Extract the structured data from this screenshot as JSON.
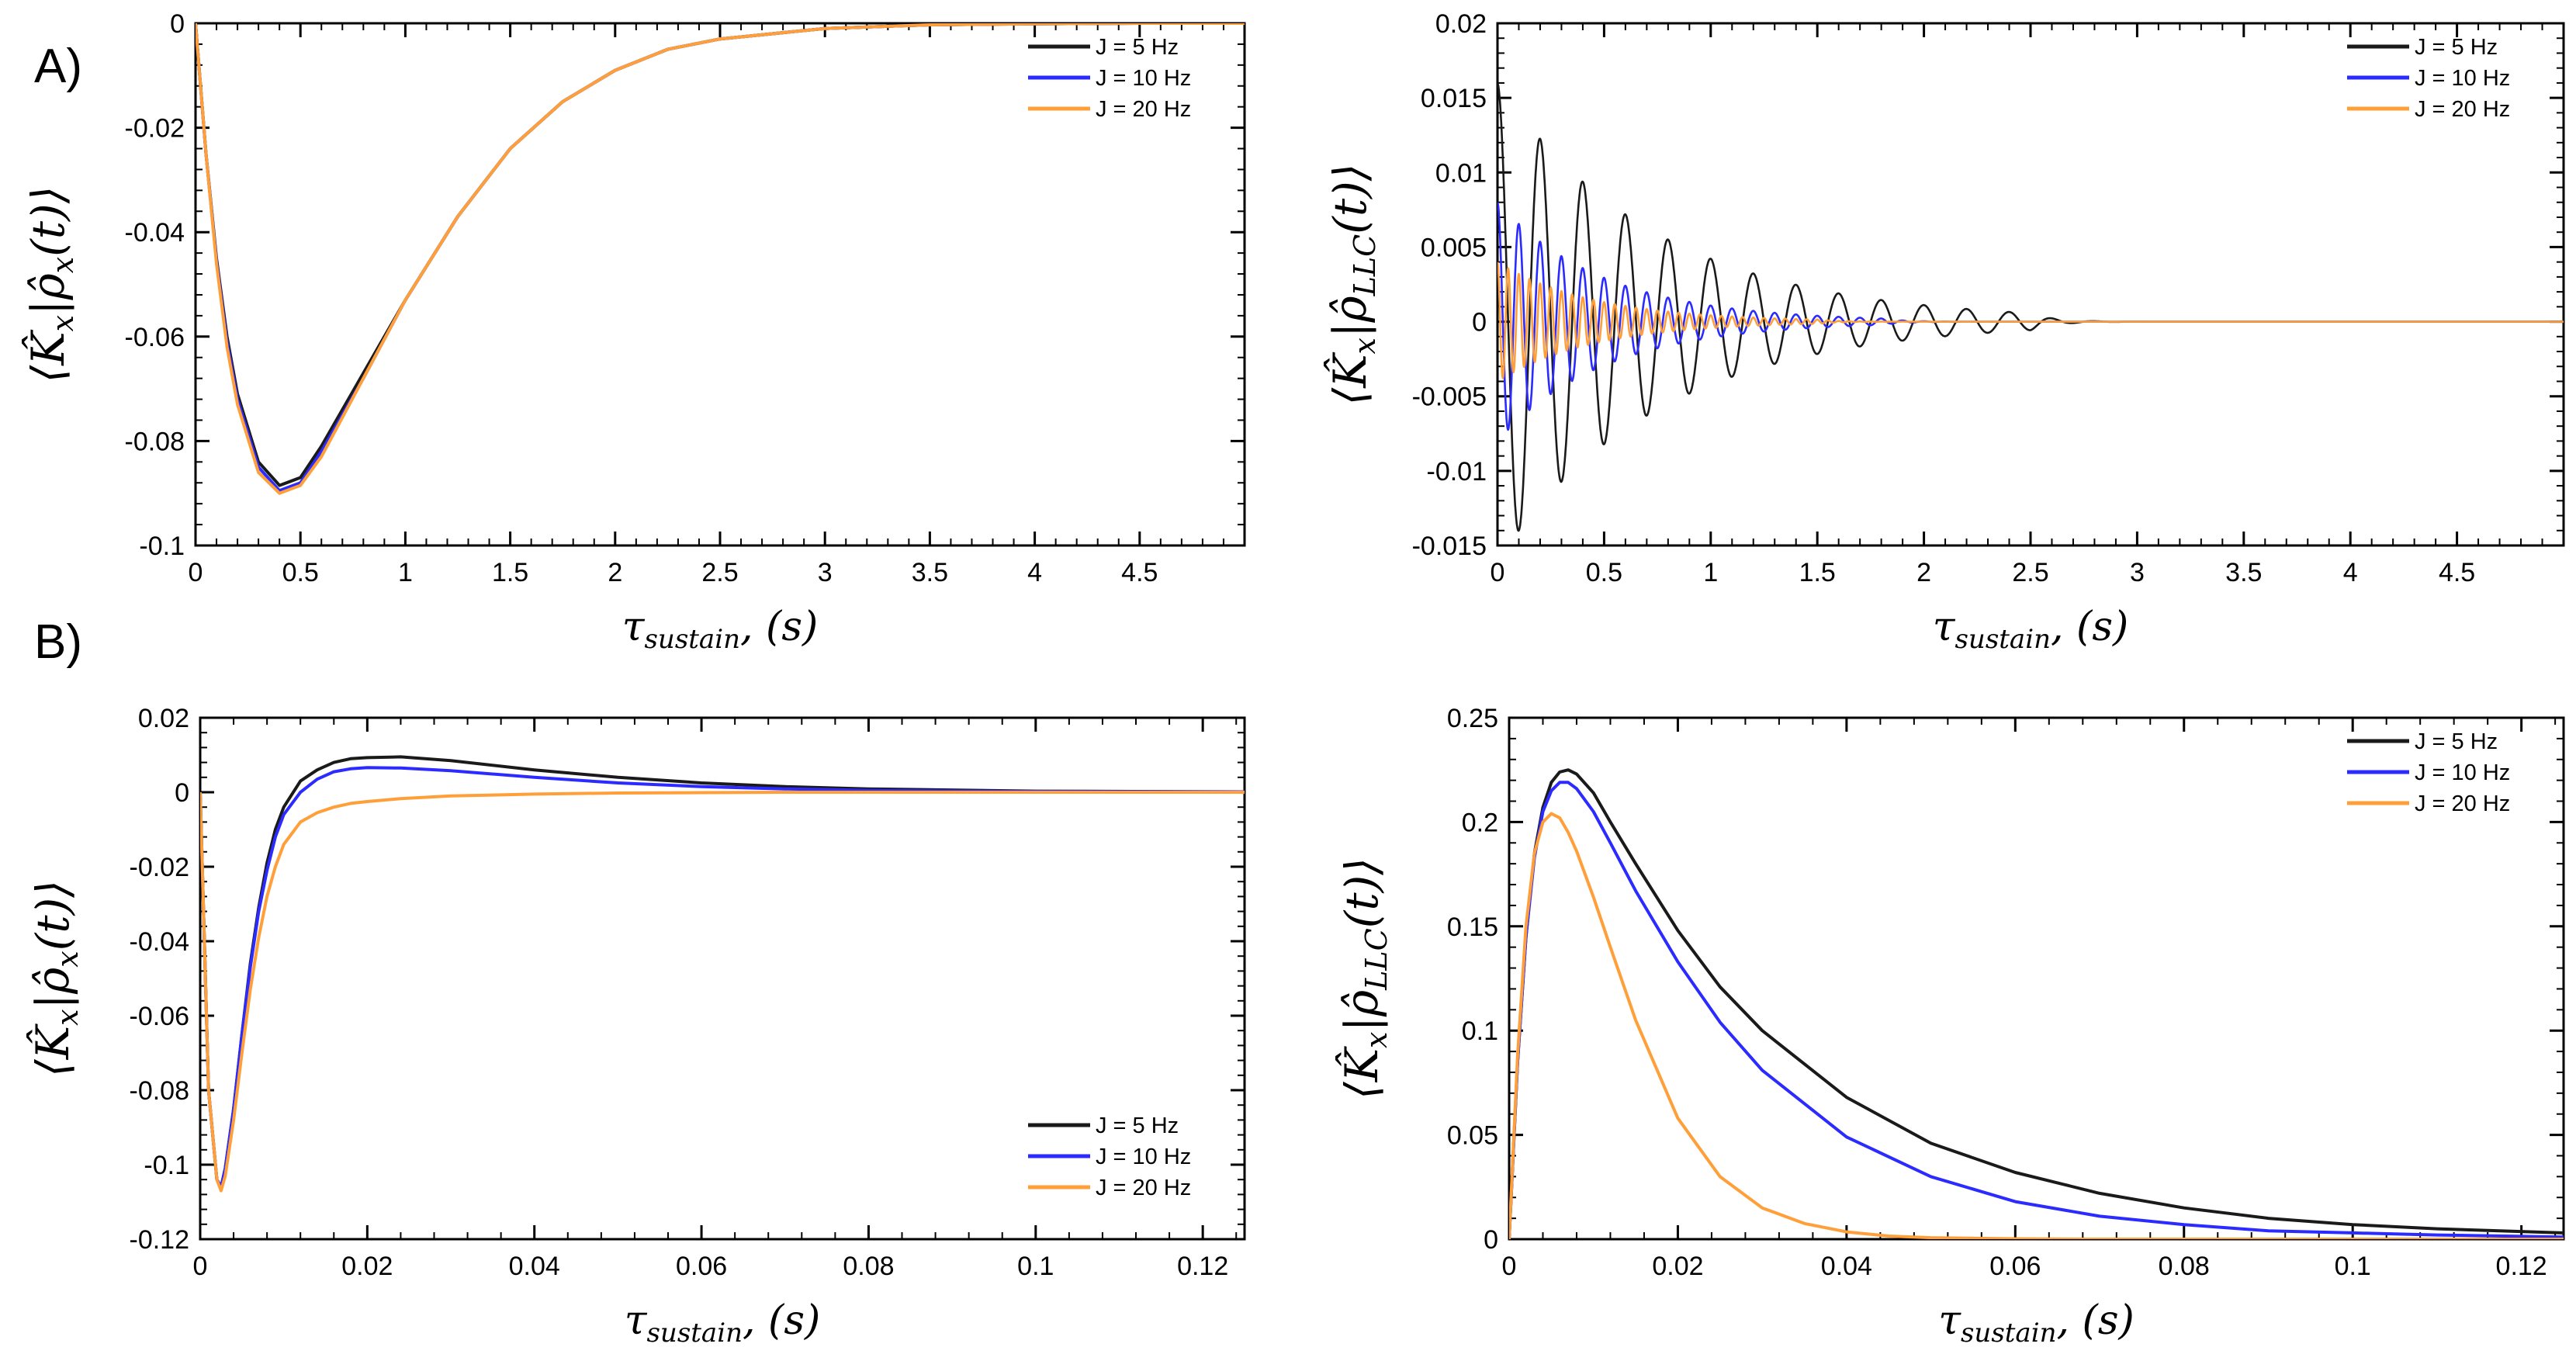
{
  "panel_labels": [
    "A)",
    "B)"
  ],
  "colors": {
    "J5": "#1a1a1a",
    "J10": "#2b2bff",
    "J20": "#ff9f3a",
    "axis": "#000000"
  },
  "chart_data": [
    {
      "type": "line",
      "panel": "A-left",
      "xlabel": {
        "main": "τ",
        "sub": "sustain",
        "tail": ", (s)"
      },
      "ylabel": {
        "open": "⟨K̂",
        "sub1": "x",
        "mid": "|ρ̂",
        "sub2": "x",
        "close": "(t)⟩"
      },
      "xlim": [
        0,
        5
      ],
      "ylim": [
        -0.1,
        0
      ],
      "xticks": [
        0,
        0.5,
        1,
        1.5,
        2,
        2.5,
        3,
        3.5,
        4,
        4.5
      ],
      "xtick_labels": [
        "0",
        "0.5",
        "1",
        "1.5",
        "2",
        "2.5",
        "3",
        "3.5",
        "4",
        "4.5"
      ],
      "yticks": [
        0,
        -0.02,
        -0.04,
        -0.06,
        -0.08,
        -0.1
      ],
      "ytick_labels": [
        "0",
        "-0.02",
        "-0.04",
        "-0.06",
        "-0.08",
        "-0.1"
      ],
      "legend": {
        "position": "top-right",
        "entries": [
          "J = 5 Hz",
          "J = 10 Hz",
          "J = 20 Hz"
        ]
      },
      "series": [
        {
          "name": "J = 5 Hz",
          "x": [
            0,
            0.05,
            0.1,
            0.15,
            0.2,
            0.3,
            0.4,
            0.5,
            0.6,
            0.8,
            1.0,
            1.25,
            1.5,
            1.75,
            2.0,
            2.25,
            2.5,
            3.0,
            3.5,
            4.0,
            4.5,
            5.0
          ],
          "y": [
            0,
            -0.025,
            -0.045,
            -0.06,
            -0.071,
            -0.084,
            -0.0885,
            -0.087,
            -0.081,
            -0.067,
            -0.053,
            -0.037,
            -0.024,
            -0.015,
            -0.009,
            -0.005,
            -0.003,
            -0.001,
            -0.0003,
            -0.0001,
            0,
            0
          ]
        },
        {
          "name": "J = 10 Hz",
          "x": [
            0,
            0.05,
            0.1,
            0.15,
            0.2,
            0.3,
            0.4,
            0.5,
            0.6,
            0.8,
            1.0,
            1.25,
            1.5,
            1.75,
            2.0,
            2.25,
            2.5,
            3.0,
            3.5,
            4.0,
            4.5,
            5.0
          ],
          "y": [
            0,
            -0.025,
            -0.0455,
            -0.061,
            -0.072,
            -0.085,
            -0.0895,
            -0.088,
            -0.082,
            -0.068,
            -0.053,
            -0.037,
            -0.024,
            -0.015,
            -0.009,
            -0.005,
            -0.003,
            -0.001,
            -0.0003,
            -0.0001,
            0,
            0
          ]
        },
        {
          "name": "J = 20 Hz",
          "x": [
            0,
            0.05,
            0.1,
            0.15,
            0.2,
            0.3,
            0.4,
            0.5,
            0.6,
            0.8,
            1.0,
            1.25,
            1.5,
            1.75,
            2.0,
            2.25,
            2.5,
            3.0,
            3.5,
            4.0,
            4.5,
            5.0
          ],
          "y": [
            0,
            -0.025,
            -0.046,
            -0.062,
            -0.073,
            -0.086,
            -0.09,
            -0.0885,
            -0.083,
            -0.068,
            -0.053,
            -0.037,
            -0.024,
            -0.015,
            -0.009,
            -0.005,
            -0.003,
            -0.001,
            -0.0003,
            -0.0001,
            0,
            0
          ]
        }
      ]
    },
    {
      "type": "line",
      "panel": "A-right",
      "xlabel": {
        "main": "τ",
        "sub": "sustain",
        "tail": ", (s)"
      },
      "ylabel": {
        "open": "⟨K̂",
        "sub1": "x",
        "mid": "|ρ̂",
        "sub2": "LLC",
        "close": "(t)⟩"
      },
      "xlim": [
        0,
        5
      ],
      "ylim": [
        -0.015,
        0.02
      ],
      "xticks": [
        0,
        0.5,
        1,
        1.5,
        2,
        2.5,
        3,
        3.5,
        4,
        4.5
      ],
      "xtick_labels": [
        "0",
        "0.5",
        "1",
        "1.5",
        "2",
        "2.5",
        "3",
        "3.5",
        "4",
        "4.5"
      ],
      "yticks": [
        0.02,
        0.015,
        0.01,
        0.005,
        0,
        -0.005,
        -0.01,
        -0.015
      ],
      "ytick_labels": [
        "0.02",
        "0.015",
        "0.01",
        "0.005",
        "0",
        "-0.005",
        "-0.01",
        "-0.015"
      ],
      "legend": {
        "position": "top-right",
        "entries": [
          "J = 5 Hz",
          "J = 10 Hz",
          "J = 20 Hz"
        ]
      },
      "series": [
        {
          "name": "J = 5 Hz",
          "model": "damped-oscillation",
          "amplitude": 0.016,
          "period_s": 0.2,
          "decay_s": 0.75,
          "envelope_end_s": 2.5
        },
        {
          "name": "J = 10 Hz",
          "model": "damped-oscillation",
          "amplitude": 0.008,
          "period_s": 0.1,
          "decay_s": 0.5,
          "envelope_end_s": 1.8
        },
        {
          "name": "J = 20 Hz",
          "model": "damped-oscillation",
          "amplitude": 0.004,
          "period_s": 0.05,
          "decay_s": 0.45,
          "envelope_end_s": 1.5
        }
      ]
    },
    {
      "type": "line",
      "panel": "B-left",
      "xlabel": {
        "main": "τ",
        "sub": "sustain",
        "tail": ", (s)"
      },
      "ylabel": {
        "open": "⟨K̂",
        "sub1": "x",
        "mid": "|ρ̂",
        "sub2": "x",
        "close": "(t)⟩"
      },
      "xlim": [
        0,
        0.125
      ],
      "ylim": [
        -0.12,
        0.02
      ],
      "xticks": [
        0,
        0.02,
        0.04,
        0.06,
        0.08,
        0.1,
        0.12
      ],
      "xtick_labels": [
        "0",
        "0.02",
        "0.04",
        "0.06",
        "0.08",
        "0.1",
        "0.12"
      ],
      "yticks": [
        0.02,
        0,
        -0.02,
        -0.04,
        -0.06,
        -0.08,
        -0.1,
        -0.12
      ],
      "ytick_labels": [
        "0.02",
        "0",
        "-0.02",
        "-0.04",
        "-0.06",
        "-0.08",
        "-0.1",
        "-0.12"
      ],
      "legend": {
        "position": "bottom-right",
        "entries": [
          "J = 5 Hz",
          "J = 10 Hz",
          "J = 20 Hz"
        ]
      },
      "series": [
        {
          "name": "J = 5 Hz",
          "x": [
            0,
            0.001,
            0.002,
            0.0025,
            0.003,
            0.004,
            0.005,
            0.006,
            0.007,
            0.008,
            0.009,
            0.01,
            0.012,
            0.014,
            0.016,
            0.018,
            0.02,
            0.024,
            0.03,
            0.04,
            0.05,
            0.06,
            0.07,
            0.08,
            0.1,
            0.125
          ],
          "y": [
            0,
            -0.08,
            -0.104,
            -0.106,
            -0.101,
            -0.085,
            -0.065,
            -0.046,
            -0.031,
            -0.019,
            -0.01,
            -0.004,
            0.003,
            0.006,
            0.008,
            0.009,
            0.0093,
            0.0095,
            0.0085,
            0.006,
            0.004,
            0.0025,
            0.0015,
            0.0009,
            0.0003,
            0.0001
          ]
        },
        {
          "name": "J = 10 Hz",
          "x": [
            0,
            0.001,
            0.002,
            0.0025,
            0.003,
            0.004,
            0.005,
            0.006,
            0.007,
            0.008,
            0.009,
            0.01,
            0.012,
            0.014,
            0.016,
            0.018,
            0.02,
            0.024,
            0.03,
            0.04,
            0.05,
            0.06,
            0.07,
            0.08,
            0.1,
            0.125
          ],
          "y": [
            0,
            -0.08,
            -0.104,
            -0.106,
            -0.101,
            -0.085,
            -0.065,
            -0.047,
            -0.032,
            -0.021,
            -0.012,
            -0.006,
            0,
            0.0035,
            0.0055,
            0.0063,
            0.0066,
            0.0065,
            0.0058,
            0.004,
            0.0025,
            0.0015,
            0.0009,
            0.0005,
            0.0002,
            0.0001
          ]
        },
        {
          "name": "J = 20 Hz",
          "x": [
            0,
            0.001,
            0.002,
            0.0025,
            0.003,
            0.004,
            0.005,
            0.006,
            0.007,
            0.008,
            0.009,
            0.01,
            0.012,
            0.014,
            0.016,
            0.018,
            0.02,
            0.024,
            0.03,
            0.04,
            0.05,
            0.06,
            0.07,
            0.08,
            0.1,
            0.125
          ],
          "y": [
            0,
            -0.08,
            -0.104,
            -0.107,
            -0.103,
            -0.088,
            -0.07,
            -0.053,
            -0.039,
            -0.028,
            -0.02,
            -0.014,
            -0.008,
            -0.0055,
            -0.004,
            -0.003,
            -0.0025,
            -0.0017,
            -0.001,
            -0.0005,
            -0.0002,
            -0.0001,
            0,
            0,
            0,
            0
          ]
        }
      ]
    },
    {
      "type": "line",
      "panel": "B-right",
      "xlabel": {
        "main": "τ",
        "sub": "sustain",
        "tail": ", (s)"
      },
      "ylabel": {
        "open": "⟨K̂",
        "sub1": "x",
        "mid": "|ρ̂",
        "sub2": "LLC",
        "close": "(t)⟩"
      },
      "xlim": [
        0,
        0.125
      ],
      "ylim": [
        0,
        0.25
      ],
      "xticks": [
        0,
        0.02,
        0.04,
        0.06,
        0.08,
        0.1,
        0.12
      ],
      "xtick_labels": [
        "0",
        "0.02",
        "0.04",
        "0.06",
        "0.08",
        "0.1",
        "0.12"
      ],
      "yticks": [
        0.25,
        0.2,
        0.15,
        0.1,
        0.05,
        0
      ],
      "ytick_labels": [
        "0.25",
        "0.2",
        "0.15",
        "0.1",
        "0.05",
        "0"
      ],
      "legend": {
        "position": "top-right",
        "entries": [
          "J = 5 Hz",
          "J = 10 Hz",
          "J = 20 Hz"
        ]
      },
      "series": [
        {
          "name": "J = 5 Hz",
          "x": [
            0,
            0.001,
            0.002,
            0.003,
            0.004,
            0.005,
            0.006,
            0.007,
            0.008,
            0.01,
            0.012,
            0.015,
            0.02,
            0.025,
            0.03,
            0.04,
            0.05,
            0.06,
            0.07,
            0.08,
            0.09,
            0.1,
            0.11,
            0.125
          ],
          "y": [
            0,
            0.085,
            0.145,
            0.185,
            0.207,
            0.219,
            0.224,
            0.225,
            0.223,
            0.214,
            0.2,
            0.18,
            0.148,
            0.121,
            0.1,
            0.068,
            0.046,
            0.032,
            0.022,
            0.015,
            0.01,
            0.007,
            0.005,
            0.003
          ]
        },
        {
          "name": "J = 10 Hz",
          "x": [
            0,
            0.001,
            0.002,
            0.003,
            0.004,
            0.005,
            0.006,
            0.007,
            0.008,
            0.01,
            0.012,
            0.015,
            0.02,
            0.025,
            0.03,
            0.04,
            0.05,
            0.06,
            0.07,
            0.08,
            0.09,
            0.1,
            0.11,
            0.125
          ],
          "y": [
            0,
            0.085,
            0.145,
            0.183,
            0.205,
            0.215,
            0.219,
            0.219,
            0.216,
            0.205,
            0.19,
            0.167,
            0.133,
            0.104,
            0.081,
            0.049,
            0.03,
            0.018,
            0.011,
            0.007,
            0.004,
            0.003,
            0.002,
            0.001
          ]
        },
        {
          "name": "J = 20 Hz",
          "x": [
            0,
            0.001,
            0.002,
            0.003,
            0.004,
            0.005,
            0.006,
            0.007,
            0.008,
            0.01,
            0.012,
            0.015,
            0.02,
            0.025,
            0.03,
            0.035,
            0.04,
            0.045,
            0.05,
            0.06,
            0.07,
            0.08,
            0.1,
            0.125
          ],
          "y": [
            0,
            0.088,
            0.15,
            0.185,
            0.2,
            0.204,
            0.202,
            0.195,
            0.186,
            0.164,
            0.14,
            0.105,
            0.058,
            0.03,
            0.015,
            0.0075,
            0.0035,
            0.0015,
            0.0007,
            0.0002,
            0,
            0,
            0,
            0
          ]
        }
      ]
    }
  ]
}
